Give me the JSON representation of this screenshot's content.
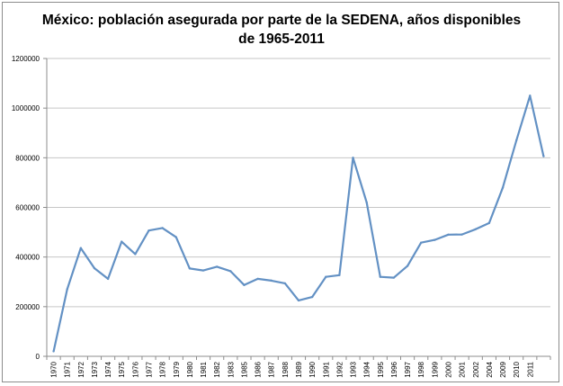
{
  "chart_data": {
    "type": "line",
    "title_lines": [
      "México: población asegurada por parte de la SEDENA, años disponibles",
      "de 1965-2011"
    ],
    "xlabel": "",
    "ylabel": "",
    "ylim": [
      0,
      1200000
    ],
    "yticks": [
      0,
      200000,
      400000,
      600000,
      800000,
      1000000,
      1200000
    ],
    "grid": "horizontal",
    "legend": "none",
    "line_color": "#6391c4",
    "grid_color": "#c6c6c6",
    "categories": [
      "1970",
      "1971",
      "1972",
      "1973",
      "1974",
      "1975",
      "1976",
      "1977",
      "1978",
      "1979",
      "1980",
      "1981",
      "1982",
      "1983",
      "1985",
      "1986",
      "1987",
      "1988",
      "1989",
      "1990",
      "1991",
      "1992",
      "1993",
      "1994",
      "1995",
      "1996",
      "1997",
      "1998",
      "1999",
      "2000",
      "2001",
      "2002",
      "2004",
      "2009",
      "2010",
      "2011",
      ""
    ],
    "values": [
      20000,
      270000,
      436000,
      355000,
      312000,
      462000,
      412000,
      507000,
      517000,
      480000,
      354000,
      346000,
      361000,
      343000,
      287000,
      312000,
      305000,
      294000,
      225000,
      239000,
      320000,
      327000,
      800000,
      620000,
      320000,
      317000,
      364000,
      458000,
      469000,
      490000,
      491000,
      512000,
      537000,
      679000,
      870000,
      1050000,
      806000
    ]
  }
}
